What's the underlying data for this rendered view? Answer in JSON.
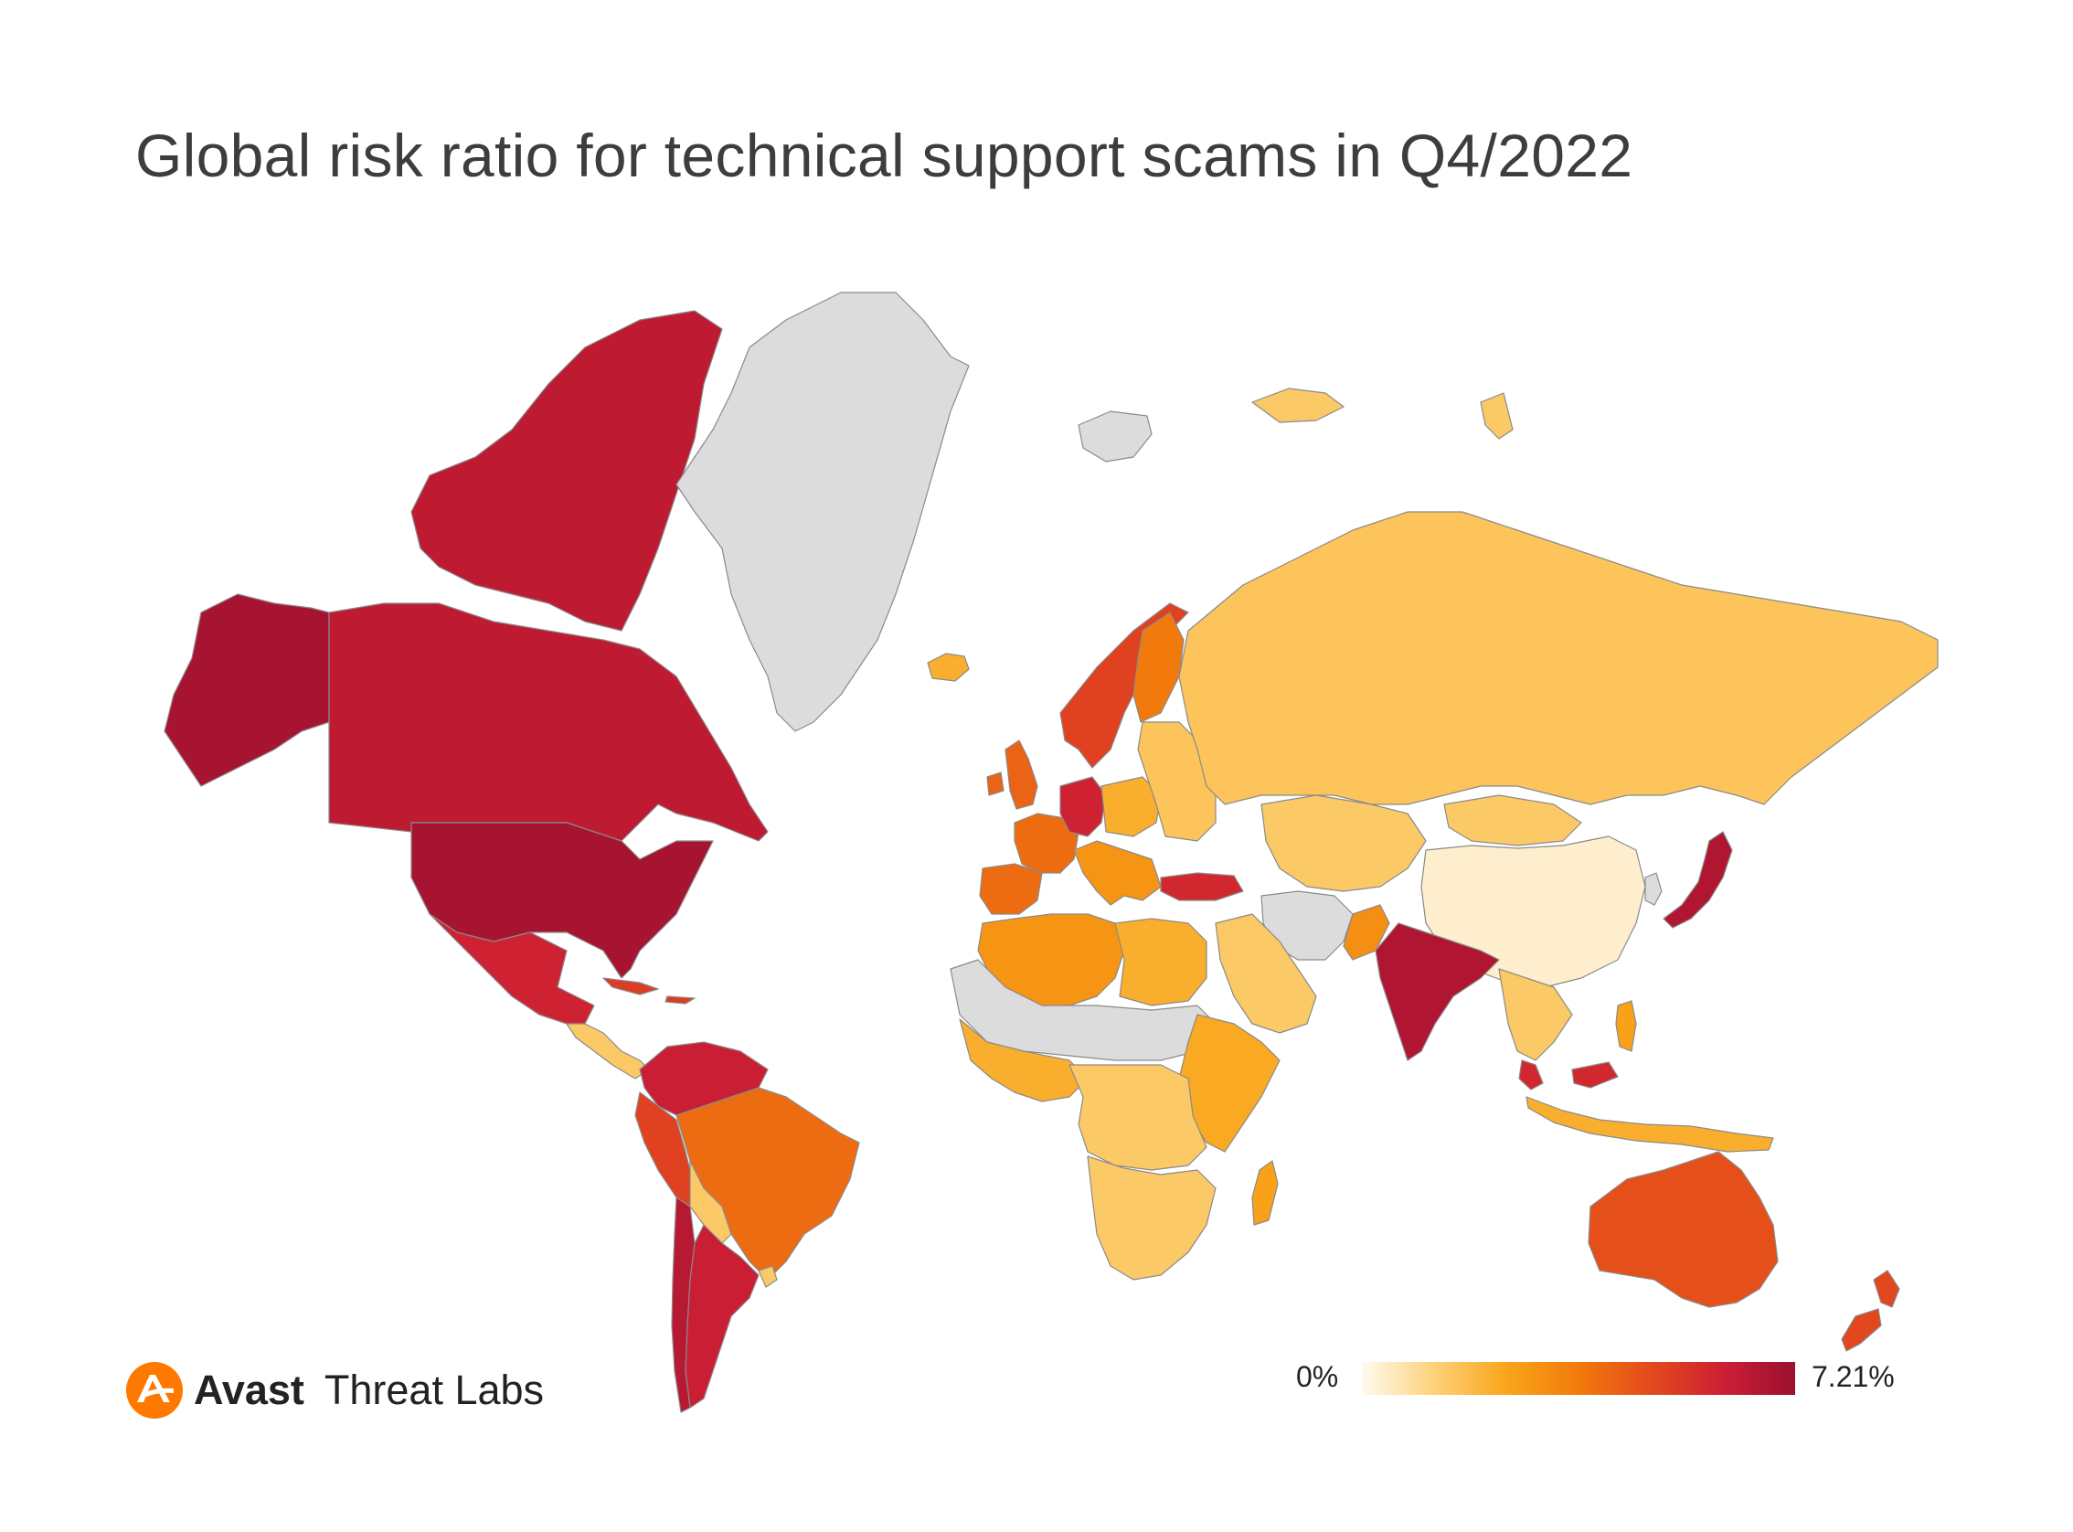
{
  "title": "Global risk ratio for technical support scams in Q4/2022",
  "brand": {
    "name": "Avast",
    "sub": "Threat Labs",
    "logo_icon": "avast-logo-icon"
  },
  "legend": {
    "min_label": "0%",
    "max_label": "7.21%",
    "min_value": 0,
    "max_value": 7.21,
    "gradient": [
      "#fffaf0",
      "#fdd27a",
      "#f9a51a",
      "#f27a0c",
      "#e44a1c",
      "#cc1f34",
      "#9b1030"
    ]
  },
  "no_data_color": "#dcdcdc",
  "regions": [
    {
      "id": "canada",
      "level": 0.88
    },
    {
      "id": "canadian-arctic-islands",
      "level": 0.88
    },
    {
      "id": "alaska",
      "level": 0.96
    },
    {
      "id": "usa",
      "level": 0.96
    },
    {
      "id": "mexico",
      "level": 0.82
    },
    {
      "id": "greenland",
      "level": null
    },
    {
      "id": "iceland",
      "level": 0.3
    },
    {
      "id": "central-america",
      "level": 0.2
    },
    {
      "id": "caribbean",
      "level": 0.72
    },
    {
      "id": "colombia-venezuela",
      "level": 0.84
    },
    {
      "id": "peru-ecuador",
      "level": 0.7
    },
    {
      "id": "brazil",
      "level": 0.55
    },
    {
      "id": "bolivia-paraguay",
      "level": 0.2
    },
    {
      "id": "argentina",
      "level": 0.84
    },
    {
      "id": "chile",
      "level": 0.9
    },
    {
      "id": "uruguay",
      "level": 0.2
    },
    {
      "id": "norway-sweden",
      "level": 0.7
    },
    {
      "id": "finland",
      "level": 0.5
    },
    {
      "id": "uk-ireland",
      "level": 0.58
    },
    {
      "id": "france",
      "level": 0.55
    },
    {
      "id": "iberia",
      "level": 0.55
    },
    {
      "id": "germany-benelux",
      "level": 0.82
    },
    {
      "id": "central-europe",
      "level": 0.3
    },
    {
      "id": "eastern-europe",
      "level": 0.22
    },
    {
      "id": "italy-balkans",
      "level": 0.4
    },
    {
      "id": "turkey",
      "level": 0.8
    },
    {
      "id": "russia",
      "level": 0.22
    },
    {
      "id": "kazakhstan-central-asia",
      "level": 0.2
    },
    {
      "id": "mongolia",
      "level": 0.2
    },
    {
      "id": "china",
      "level": 0.05
    },
    {
      "id": "iran-afghanistan",
      "level": null
    },
    {
      "id": "arabia",
      "level": 0.2
    },
    {
      "id": "pakistan",
      "level": 0.42
    },
    {
      "id": "india",
      "level": 0.93
    },
    {
      "id": "southeast-asia",
      "level": 0.2
    },
    {
      "id": "malaysia",
      "level": 0.8
    },
    {
      "id": "indonesia",
      "level": 0.3
    },
    {
      "id": "philippines",
      "level": 0.35
    },
    {
      "id": "japan",
      "level": 0.93
    },
    {
      "id": "korea",
      "level": null
    },
    {
      "id": "north-africa",
      "level": 0.4
    },
    {
      "id": "sahel",
      "level": null
    },
    {
      "id": "west-africa",
      "level": 0.3
    },
    {
      "id": "egypt-libya",
      "level": 0.3
    },
    {
      "id": "east-africa",
      "level": 0.32
    },
    {
      "id": "central-africa",
      "level": 0.2
    },
    {
      "id": "southern-africa",
      "level": 0.2
    },
    {
      "id": "madagascar",
      "level": 0.35
    },
    {
      "id": "australia",
      "level": 0.65
    },
    {
      "id": "new-zealand",
      "level": 0.68
    },
    {
      "id": "svalbard",
      "level": null
    },
    {
      "id": "russian-arctic-islands",
      "level": 0.2
    }
  ]
}
